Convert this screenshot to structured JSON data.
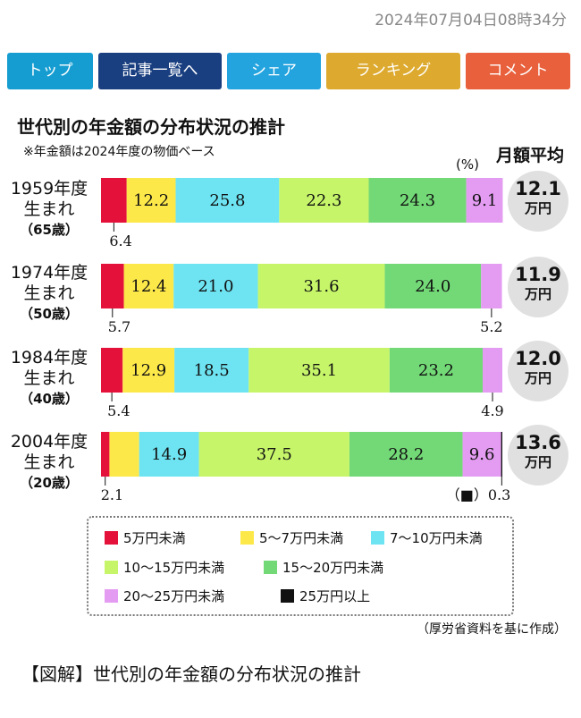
{
  "header": {
    "timestamp": "2024年07月04日08時34分"
  },
  "nav": {
    "items": [
      {
        "label": "トップ",
        "color": "#159dd1"
      },
      {
        "label": "記事一覧へ",
        "color": "#1a3f80"
      },
      {
        "label": "シェア",
        "color": "#23a4df"
      },
      {
        "label": "ランキング",
        "color": "#ddaa2f"
      },
      {
        "label": "コメント",
        "color": "#e8603c"
      }
    ]
  },
  "chart_data": {
    "type": "bar",
    "orientation": "horizontal",
    "stacked": true,
    "title": "世代別の年金額の分布状況の推計",
    "subtitle": "※年金額は2024年度の物価ベース",
    "unit_label": "(%)",
    "avg_header": "月額平均",
    "categories": [
      {
        "line1": "1959年度",
        "line2": "生まれ",
        "line3": "（65歳）",
        "avg_value": "12.1",
        "avg_unit": "万円"
      },
      {
        "line1": "1974年度",
        "line2": "生まれ",
        "line3": "（50歳）",
        "avg_value": "11.9",
        "avg_unit": "万円"
      },
      {
        "line1": "1984年度",
        "line2": "生まれ",
        "line3": "（40歳）",
        "avg_value": "12.0",
        "avg_unit": "万円"
      },
      {
        "line1": "2004年度",
        "line2": "生まれ",
        "line3": "（20歳）",
        "avg_value": "13.6",
        "avg_unit": "万円"
      }
    ],
    "series": [
      {
        "name": "5万円未満",
        "color": "#e4113a",
        "values": [
          6.4,
          5.7,
          5.4,
          2.1
        ]
      },
      {
        "name": "5～7万円未満",
        "color": "#fde84a",
        "values": [
          12.2,
          12.4,
          12.9,
          7.4
        ]
      },
      {
        "name": "7～10万円未満",
        "color": "#6ee4f2",
        "values": [
          25.8,
          21.0,
          18.5,
          14.9
        ]
      },
      {
        "name": "10～15万円未満",
        "color": "#c6f56a",
        "values": [
          22.3,
          31.6,
          35.1,
          37.5
        ]
      },
      {
        "name": "15～20万円未満",
        "color": "#73d977",
        "values": [
          24.3,
          24.0,
          23.2,
          28.2
        ]
      },
      {
        "name": "20～25万円未満",
        "color": "#e39cf1",
        "values": [
          9.1,
          5.2,
          4.9,
          9.6
        ]
      },
      {
        "name": "25万円以上",
        "color": "#111111",
        "values": [
          0,
          0,
          0,
          0.3
        ]
      }
    ],
    "special_note": "（■）0.3",
    "xlim": [
      0,
      100
    ],
    "legend_position": "bottom"
  },
  "footer": {
    "source": "（厚労省資料を基に作成）",
    "caption": "【図解】世代別の年金額の分布状況の推計"
  }
}
